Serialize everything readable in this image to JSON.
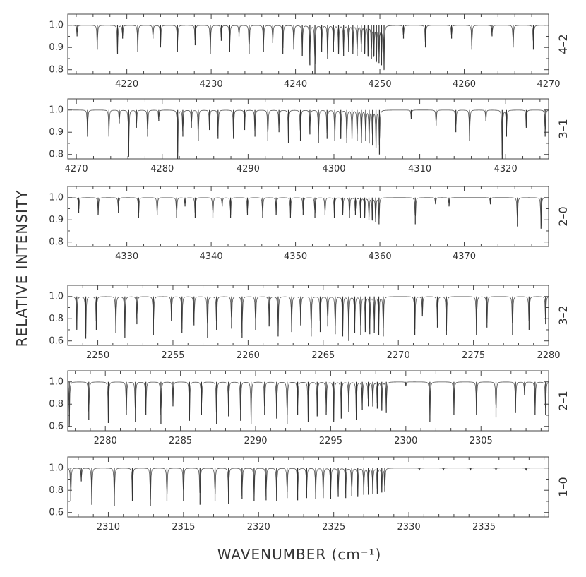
{
  "figure": {
    "ylabel": "RELATIVE INTENSITY",
    "xlabel": "WAVENUMBER  (cm⁻¹)"
  },
  "chart_data": [
    {
      "type": "line",
      "band": "4–2",
      "xlim": [
        4213,
        4270
      ],
      "ylim": [
        0.78,
        1.05
      ],
      "xticks": [
        4220,
        4230,
        4240,
        4250,
        4260,
        4270
      ],
      "yticks": [
        0.8,
        0.9,
        1.0
      ],
      "ytick_labels": [
        "0.8",
        "0.9",
        "1.0"
      ],
      "lines": [
        {
          "x": 4214.1,
          "d": 0.05
        },
        {
          "x": 4216.5,
          "d": 0.11
        },
        {
          "x": 4218.9,
          "d": 0.13
        },
        {
          "x": 4219.5,
          "d": 0.06
        },
        {
          "x": 4221.3,
          "d": 0.12
        },
        {
          "x": 4223.1,
          "d": 0.06
        },
        {
          "x": 4224.0,
          "d": 0.1
        },
        {
          "x": 4226.0,
          "d": 0.12
        },
        {
          "x": 4228.1,
          "d": 0.09
        },
        {
          "x": 4229.9,
          "d": 0.13
        },
        {
          "x": 4231.2,
          "d": 0.07
        },
        {
          "x": 4232.2,
          "d": 0.12
        },
        {
          "x": 4233.3,
          "d": 0.05
        },
        {
          "x": 4234.5,
          "d": 0.13
        },
        {
          "x": 4236.2,
          "d": 0.12
        },
        {
          "x": 4237.3,
          "d": 0.08
        },
        {
          "x": 4238.5,
          "d": 0.13
        },
        {
          "x": 4239.8,
          "d": 0.11
        },
        {
          "x": 4240.8,
          "d": 0.14
        },
        {
          "x": 4241.7,
          "d": 0.18
        },
        {
          "x": 4242.3,
          "d": 0.22
        },
        {
          "x": 4243.1,
          "d": 0.12
        },
        {
          "x": 4243.8,
          "d": 0.15
        },
        {
          "x": 4244.5,
          "d": 0.12
        },
        {
          "x": 4245.1,
          "d": 0.13
        },
        {
          "x": 4245.7,
          "d": 0.14
        },
        {
          "x": 4246.3,
          "d": 0.12
        },
        {
          "x": 4246.8,
          "d": 0.13
        },
        {
          "x": 4247.3,
          "d": 0.14
        },
        {
          "x": 4247.8,
          "d": 0.12
        },
        {
          "x": 4248.2,
          "d": 0.13
        },
        {
          "x": 4248.6,
          "d": 0.14
        },
        {
          "x": 4249.0,
          "d": 0.15
        },
        {
          "x": 4249.3,
          "d": 0.14
        },
        {
          "x": 4249.6,
          "d": 0.16
        },
        {
          "x": 4249.9,
          "d": 0.17
        },
        {
          "x": 4250.2,
          "d": 0.18
        },
        {
          "x": 4250.5,
          "d": 0.2
        },
        {
          "x": 4252.8,
          "d": 0.06
        },
        {
          "x": 4255.4,
          "d": 0.1
        },
        {
          "x": 4258.5,
          "d": 0.06
        },
        {
          "x": 4260.9,
          "d": 0.11
        },
        {
          "x": 4263.3,
          "d": 0.05
        },
        {
          "x": 4265.8,
          "d": 0.1
        },
        {
          "x": 4268.2,
          "d": 0.11
        }
      ]
    },
    {
      "type": "line",
      "band": "3–1",
      "xlim": [
        4269,
        4325
      ],
      "ylim": [
        0.78,
        1.05
      ],
      "xticks": [
        4270,
        4280,
        4290,
        4300,
        4310,
        4320
      ],
      "yticks": [
        0.8,
        0.9,
        1.0
      ],
      "ytick_labels": [
        "0.8",
        "0.9",
        "1.0"
      ],
      "lines": [
        {
          "x": 4271.3,
          "d": 0.12
        },
        {
          "x": 4273.8,
          "d": 0.12
        },
        {
          "x": 4275.0,
          "d": 0.06
        },
        {
          "x": 4276.1,
          "d": 0.21
        },
        {
          "x": 4277.0,
          "d": 0.08
        },
        {
          "x": 4278.3,
          "d": 0.12
        },
        {
          "x": 4279.6,
          "d": 0.05
        },
        {
          "x": 4281.8,
          "d": 0.22
        },
        {
          "x": 4282.4,
          "d": 0.12
        },
        {
          "x": 4283.4,
          "d": 0.08
        },
        {
          "x": 4284.2,
          "d": 0.14
        },
        {
          "x": 4285.5,
          "d": 0.09
        },
        {
          "x": 4286.5,
          "d": 0.13
        },
        {
          "x": 4288.3,
          "d": 0.13
        },
        {
          "x": 4289.6,
          "d": 0.09
        },
        {
          "x": 4290.8,
          "d": 0.12
        },
        {
          "x": 4292.3,
          "d": 0.14
        },
        {
          "x": 4293.6,
          "d": 0.1
        },
        {
          "x": 4294.7,
          "d": 0.15
        },
        {
          "x": 4296.1,
          "d": 0.14
        },
        {
          "x": 4297.2,
          "d": 0.11
        },
        {
          "x": 4298.2,
          "d": 0.15
        },
        {
          "x": 4299.2,
          "d": 0.13
        },
        {
          "x": 4300.1,
          "d": 0.14
        },
        {
          "x": 4300.8,
          "d": 0.13
        },
        {
          "x": 4301.5,
          "d": 0.15
        },
        {
          "x": 4302.1,
          "d": 0.13
        },
        {
          "x": 4302.7,
          "d": 0.14
        },
        {
          "x": 4303.2,
          "d": 0.15
        },
        {
          "x": 4303.7,
          "d": 0.14
        },
        {
          "x": 4304.1,
          "d": 0.15
        },
        {
          "x": 4304.5,
          "d": 0.16
        },
        {
          "x": 4304.9,
          "d": 0.17
        },
        {
          "x": 4305.3,
          "d": 0.2
        },
        {
          "x": 4309.0,
          "d": 0.04
        },
        {
          "x": 4311.9,
          "d": 0.07
        },
        {
          "x": 4314.2,
          "d": 0.1
        },
        {
          "x": 4315.8,
          "d": 0.14
        },
        {
          "x": 4317.7,
          "d": 0.05
        },
        {
          "x": 4319.6,
          "d": 0.22
        },
        {
          "x": 4320.1,
          "d": 0.12
        },
        {
          "x": 4322.4,
          "d": 0.08
        },
        {
          "x": 4324.6,
          "d": 0.12
        }
      ]
    },
    {
      "type": "line",
      "band": "2–0",
      "xlim": [
        4323,
        4380
      ],
      "ylim": [
        0.78,
        1.05
      ],
      "xticks": [
        4330,
        4340,
        4350,
        4360,
        4370
      ],
      "yticks": [
        0.8,
        0.9,
        1.0
      ],
      "ytick_labels": [
        "0.8",
        "0.9",
        "1.0"
      ],
      "lines": [
        {
          "x": 4324.3,
          "d": 0.07
        },
        {
          "x": 4326.6,
          "d": 0.08
        },
        {
          "x": 4329.0,
          "d": 0.07
        },
        {
          "x": 4331.4,
          "d": 0.09
        },
        {
          "x": 4333.6,
          "d": 0.08
        },
        {
          "x": 4335.9,
          "d": 0.09
        },
        {
          "x": 4336.9,
          "d": 0.04
        },
        {
          "x": 4338.1,
          "d": 0.09
        },
        {
          "x": 4340.2,
          "d": 0.09
        },
        {
          "x": 4341.3,
          "d": 0.04
        },
        {
          "x": 4342.3,
          "d": 0.09
        },
        {
          "x": 4344.3,
          "d": 0.08
        },
        {
          "x": 4346.1,
          "d": 0.09
        },
        {
          "x": 4347.7,
          "d": 0.08
        },
        {
          "x": 4349.4,
          "d": 0.09
        },
        {
          "x": 4350.9,
          "d": 0.08
        },
        {
          "x": 4352.3,
          "d": 0.09
        },
        {
          "x": 4353.5,
          "d": 0.08
        },
        {
          "x": 4354.6,
          "d": 0.09
        },
        {
          "x": 4355.6,
          "d": 0.08
        },
        {
          "x": 4356.4,
          "d": 0.09
        },
        {
          "x": 4357.1,
          "d": 0.08
        },
        {
          "x": 4357.7,
          "d": 0.09
        },
        {
          "x": 4358.2,
          "d": 0.09
        },
        {
          "x": 4358.7,
          "d": 0.1
        },
        {
          "x": 4359.1,
          "d": 0.1
        },
        {
          "x": 4359.5,
          "d": 0.11
        },
        {
          "x": 4359.9,
          "d": 0.12
        },
        {
          "x": 4364.2,
          "d": 0.12
        },
        {
          "x": 4366.6,
          "d": 0.03
        },
        {
          "x": 4368.2,
          "d": 0.04
        },
        {
          "x": 4373.1,
          "d": 0.03
        },
        {
          "x": 4376.3,
          "d": 0.13
        },
        {
          "x": 4379.1,
          "d": 0.14
        }
      ]
    },
    {
      "type": "line",
      "band": "3–2",
      "xlim": [
        2248,
        2280
      ],
      "ylim": [
        0.56,
        1.1
      ],
      "xticks": [
        2250,
        2255,
        2260,
        2265,
        2270,
        2275,
        2280
      ],
      "yticks": [
        0.6,
        0.8,
        1.0
      ],
      "ytick_labels": [
        "0.6",
        "0.8",
        "1.0"
      ],
      "lines": [
        {
          "x": 2248.6,
          "d": 0.3
        },
        {
          "x": 2249.2,
          "d": 0.38
        },
        {
          "x": 2249.9,
          "d": 0.3
        },
        {
          "x": 2251.2,
          "d": 0.33
        },
        {
          "x": 2251.8,
          "d": 0.37
        },
        {
          "x": 2252.6,
          "d": 0.25
        },
        {
          "x": 2253.7,
          "d": 0.35
        },
        {
          "x": 2254.9,
          "d": 0.22
        },
        {
          "x": 2255.6,
          "d": 0.33
        },
        {
          "x": 2256.4,
          "d": 0.26
        },
        {
          "x": 2257.3,
          "d": 0.37
        },
        {
          "x": 2257.9,
          "d": 0.3
        },
        {
          "x": 2258.9,
          "d": 0.29
        },
        {
          "x": 2259.6,
          "d": 0.37
        },
        {
          "x": 2260.5,
          "d": 0.3
        },
        {
          "x": 2261.4,
          "d": 0.27
        },
        {
          "x": 2262.0,
          "d": 0.36
        },
        {
          "x": 2262.9,
          "d": 0.32
        },
        {
          "x": 2263.5,
          "d": 0.26
        },
        {
          "x": 2264.2,
          "d": 0.36
        },
        {
          "x": 2264.8,
          "d": 0.32
        },
        {
          "x": 2265.3,
          "d": 0.27
        },
        {
          "x": 2265.8,
          "d": 0.34
        },
        {
          "x": 2266.3,
          "d": 0.36
        },
        {
          "x": 2266.7,
          "d": 0.4
        },
        {
          "x": 2267.1,
          "d": 0.33
        },
        {
          "x": 2267.5,
          "d": 0.35
        },
        {
          "x": 2267.8,
          "d": 0.32
        },
        {
          "x": 2268.1,
          "d": 0.34
        },
        {
          "x": 2268.4,
          "d": 0.33
        },
        {
          "x": 2268.7,
          "d": 0.35
        },
        {
          "x": 2269.0,
          "d": 0.36
        },
        {
          "x": 2271.1,
          "d": 0.35
        },
        {
          "x": 2271.6,
          "d": 0.18
        },
        {
          "x": 2272.6,
          "d": 0.28
        },
        {
          "x": 2273.2,
          "d": 0.35
        },
        {
          "x": 2275.2,
          "d": 0.35
        },
        {
          "x": 2275.9,
          "d": 0.28
        },
        {
          "x": 2277.6,
          "d": 0.35
        },
        {
          "x": 2278.7,
          "d": 0.3
        },
        {
          "x": 2279.8,
          "d": 0.25
        }
      ]
    },
    {
      "type": "line",
      "band": "2–1",
      "xlim": [
        2277.5,
        2309.5
      ],
      "ylim": [
        0.56,
        1.1
      ],
      "xticks": [
        2280,
        2285,
        2290,
        2295,
        2300,
        2305
      ],
      "yticks": [
        0.6,
        0.8,
        1.0
      ],
      "ytick_labels": [
        "0.6",
        "0.8",
        "1.0"
      ],
      "lines": [
        {
          "x": 2277.6,
          "d": 0.4
        },
        {
          "x": 2278.9,
          "d": 0.34
        },
        {
          "x": 2280.2,
          "d": 0.37
        },
        {
          "x": 2281.4,
          "d": 0.3
        },
        {
          "x": 2282.0,
          "d": 0.36
        },
        {
          "x": 2282.7,
          "d": 0.3
        },
        {
          "x": 2283.7,
          "d": 0.38
        },
        {
          "x": 2284.5,
          "d": 0.22
        },
        {
          "x": 2285.6,
          "d": 0.35
        },
        {
          "x": 2286.4,
          "d": 0.3
        },
        {
          "x": 2287.4,
          "d": 0.38
        },
        {
          "x": 2288.2,
          "d": 0.31
        },
        {
          "x": 2289.0,
          "d": 0.35
        },
        {
          "x": 2289.7,
          "d": 0.38
        },
        {
          "x": 2290.6,
          "d": 0.3
        },
        {
          "x": 2291.4,
          "d": 0.33
        },
        {
          "x": 2292.1,
          "d": 0.38
        },
        {
          "x": 2292.8,
          "d": 0.3
        },
        {
          "x": 2293.5,
          "d": 0.36
        },
        {
          "x": 2294.1,
          "d": 0.31
        },
        {
          "x": 2294.7,
          "d": 0.3
        },
        {
          "x": 2295.2,
          "d": 0.36
        },
        {
          "x": 2295.7,
          "d": 0.33
        },
        {
          "x": 2296.2,
          "d": 0.27
        },
        {
          "x": 2296.7,
          "d": 0.34
        },
        {
          "x": 2297.1,
          "d": 0.25
        },
        {
          "x": 2297.5,
          "d": 0.22
        },
        {
          "x": 2297.8,
          "d": 0.22
        },
        {
          "x": 2298.1,
          "d": 0.24
        },
        {
          "x": 2298.4,
          "d": 0.26
        },
        {
          "x": 2298.7,
          "d": 0.28
        },
        {
          "x": 2300.0,
          "d": 0.04
        },
        {
          "x": 2301.6,
          "d": 0.36
        },
        {
          "x": 2303.2,
          "d": 0.3
        },
        {
          "x": 2304.7,
          "d": 0.3
        },
        {
          "x": 2306.0,
          "d": 0.32
        },
        {
          "x": 2307.3,
          "d": 0.28
        },
        {
          "x": 2307.9,
          "d": 0.12
        },
        {
          "x": 2308.6,
          "d": 0.3
        },
        {
          "x": 2309.3,
          "d": 0.3
        }
      ]
    },
    {
      "type": "line",
      "band": "1–0",
      "xlim": [
        2307.3,
        2339.3
      ],
      "ylim": [
        0.56,
        1.1
      ],
      "xticks": [
        2310,
        2315,
        2320,
        2325,
        2330,
        2335
      ],
      "yticks": [
        0.6,
        0.8,
        1.0
      ],
      "ytick_labels": [
        "0.6",
        "0.8",
        "1.0"
      ],
      "lines": [
        {
          "x": 2307.5,
          "d": 0.3
        },
        {
          "x": 2308.2,
          "d": 0.12
        },
        {
          "x": 2308.9,
          "d": 0.33
        },
        {
          "x": 2310.4,
          "d": 0.34
        },
        {
          "x": 2311.6,
          "d": 0.3
        },
        {
          "x": 2312.8,
          "d": 0.34
        },
        {
          "x": 2313.9,
          "d": 0.3
        },
        {
          "x": 2315.0,
          "d": 0.3
        },
        {
          "x": 2316.1,
          "d": 0.33
        },
        {
          "x": 2317.1,
          "d": 0.3
        },
        {
          "x": 2318.0,
          "d": 0.32
        },
        {
          "x": 2318.9,
          "d": 0.28
        },
        {
          "x": 2319.7,
          "d": 0.3
        },
        {
          "x": 2320.5,
          "d": 0.29
        },
        {
          "x": 2321.2,
          "d": 0.3
        },
        {
          "x": 2321.9,
          "d": 0.27
        },
        {
          "x": 2322.6,
          "d": 0.29
        },
        {
          "x": 2323.2,
          "d": 0.27
        },
        {
          "x": 2323.8,
          "d": 0.28
        },
        {
          "x": 2324.3,
          "d": 0.27
        },
        {
          "x": 2324.8,
          "d": 0.28
        },
        {
          "x": 2325.3,
          "d": 0.26
        },
        {
          "x": 2325.8,
          "d": 0.27
        },
        {
          "x": 2326.2,
          "d": 0.25
        },
        {
          "x": 2326.6,
          "d": 0.26
        },
        {
          "x": 2327.0,
          "d": 0.24
        },
        {
          "x": 2327.3,
          "d": 0.24
        },
        {
          "x": 2327.6,
          "d": 0.23
        },
        {
          "x": 2327.9,
          "d": 0.23
        },
        {
          "x": 2328.2,
          "d": 0.22
        },
        {
          "x": 2328.4,
          "d": 0.21
        },
        {
          "x": 2330.7,
          "d": 0.02
        },
        {
          "x": 2332.3,
          "d": 0.02
        },
        {
          "x": 2334.1,
          "d": 0.02
        },
        {
          "x": 2335.8,
          "d": 0.02
        },
        {
          "x": 2337.8,
          "d": 0.02
        }
      ]
    }
  ]
}
